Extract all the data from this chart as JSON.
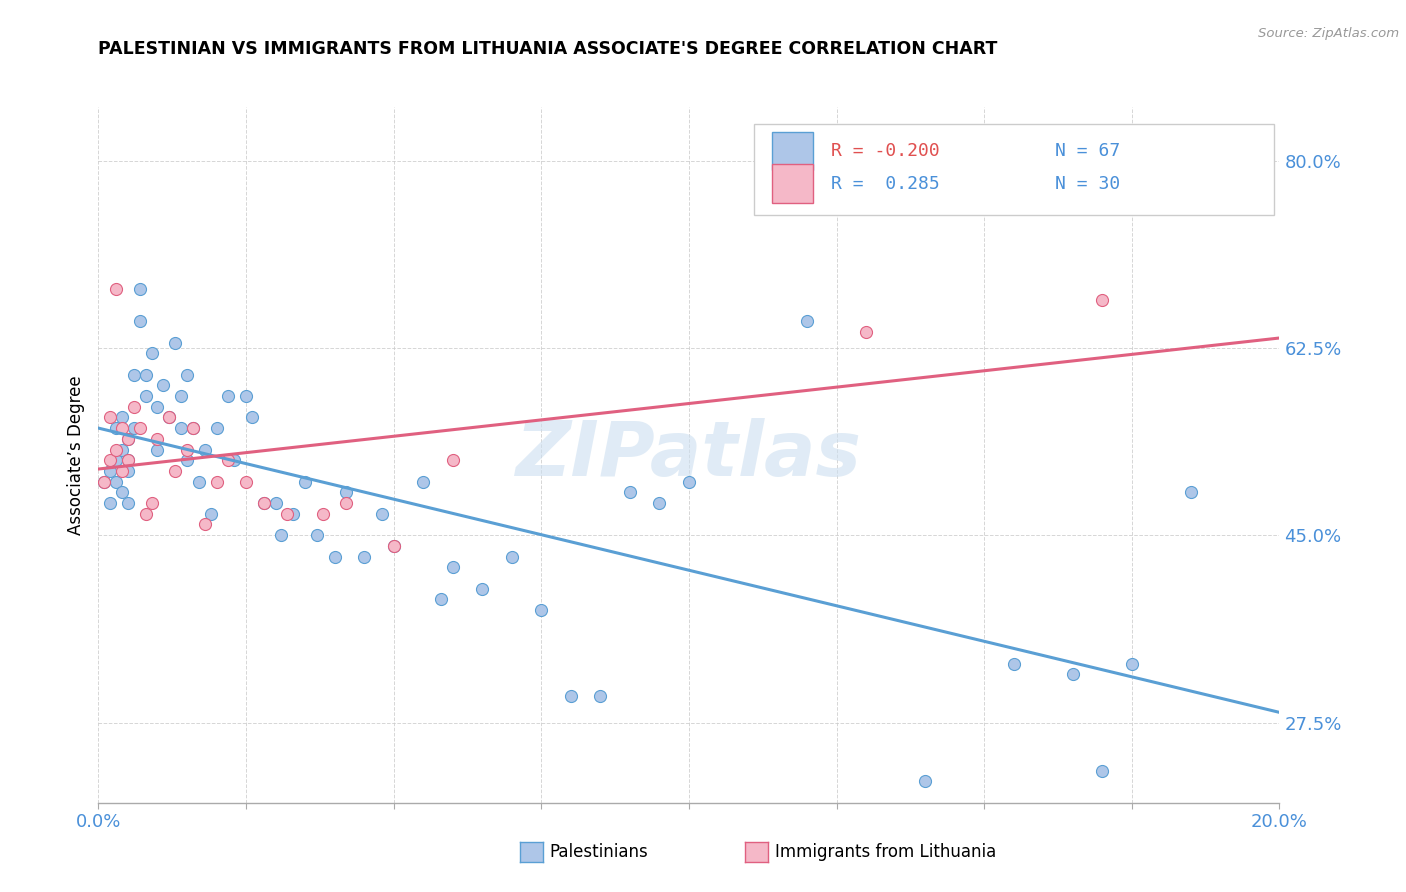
{
  "title": "PALESTINIAN VS IMMIGRANTS FROM LITHUANIA ASSOCIATE'S DEGREE CORRELATION CHART",
  "source": "Source: ZipAtlas.com",
  "ylabel": "Associate’s Degree",
  "yticks": [
    "27.5%",
    "45.0%",
    "62.5%",
    "80.0%"
  ],
  "ytick_vals": [
    0.275,
    0.45,
    0.625,
    0.8
  ],
  "xmin": 0.0,
  "xmax": 0.2,
  "ymin": 0.2,
  "ymax": 0.85,
  "blue_fill": "#aec6e8",
  "blue_edge": "#5a9fd4",
  "pink_fill": "#f5b8c8",
  "pink_edge": "#e06080",
  "blue_line": "#5a9fd4",
  "pink_line": "#e06080",
  "watermark": "ZIPatlas",
  "palestinians_x": [
    0.001,
    0.002,
    0.002,
    0.003,
    0.003,
    0.003,
    0.004,
    0.004,
    0.004,
    0.005,
    0.005,
    0.005,
    0.005,
    0.006,
    0.006,
    0.007,
    0.007,
    0.008,
    0.008,
    0.009,
    0.01,
    0.01,
    0.011,
    0.012,
    0.013,
    0.014,
    0.014,
    0.015,
    0.015,
    0.016,
    0.017,
    0.018,
    0.019,
    0.02,
    0.022,
    0.023,
    0.025,
    0.026,
    0.028,
    0.03,
    0.031,
    0.033,
    0.035,
    0.037,
    0.04,
    0.042,
    0.045,
    0.048,
    0.05,
    0.055,
    0.058,
    0.06,
    0.065,
    0.07,
    0.075,
    0.08,
    0.085,
    0.09,
    0.095,
    0.1,
    0.12,
    0.14,
    0.155,
    0.165,
    0.17,
    0.175,
    0.185
  ],
  "palestinians_y": [
    0.5,
    0.51,
    0.48,
    0.52,
    0.55,
    0.5,
    0.49,
    0.53,
    0.56,
    0.51,
    0.54,
    0.48,
    0.52,
    0.55,
    0.6,
    0.65,
    0.68,
    0.58,
    0.6,
    0.62,
    0.57,
    0.53,
    0.59,
    0.56,
    0.63,
    0.55,
    0.58,
    0.52,
    0.6,
    0.55,
    0.5,
    0.53,
    0.47,
    0.55,
    0.58,
    0.52,
    0.58,
    0.56,
    0.48,
    0.48,
    0.45,
    0.47,
    0.5,
    0.45,
    0.43,
    0.49,
    0.43,
    0.47,
    0.44,
    0.5,
    0.39,
    0.42,
    0.4,
    0.43,
    0.38,
    0.3,
    0.3,
    0.49,
    0.48,
    0.5,
    0.65,
    0.22,
    0.33,
    0.32,
    0.23,
    0.33,
    0.49
  ],
  "lithuania_x": [
    0.001,
    0.002,
    0.002,
    0.003,
    0.003,
    0.004,
    0.004,
    0.005,
    0.005,
    0.006,
    0.007,
    0.008,
    0.009,
    0.01,
    0.012,
    0.013,
    0.015,
    0.016,
    0.018,
    0.02,
    0.022,
    0.025,
    0.028,
    0.032,
    0.038,
    0.042,
    0.05,
    0.06,
    0.13,
    0.17
  ],
  "lithuania_y": [
    0.5,
    0.52,
    0.56,
    0.68,
    0.53,
    0.51,
    0.55,
    0.52,
    0.54,
    0.57,
    0.55,
    0.47,
    0.48,
    0.54,
    0.56,
    0.51,
    0.53,
    0.55,
    0.46,
    0.5,
    0.52,
    0.5,
    0.48,
    0.47,
    0.47,
    0.48,
    0.44,
    0.52,
    0.64,
    0.67
  ]
}
